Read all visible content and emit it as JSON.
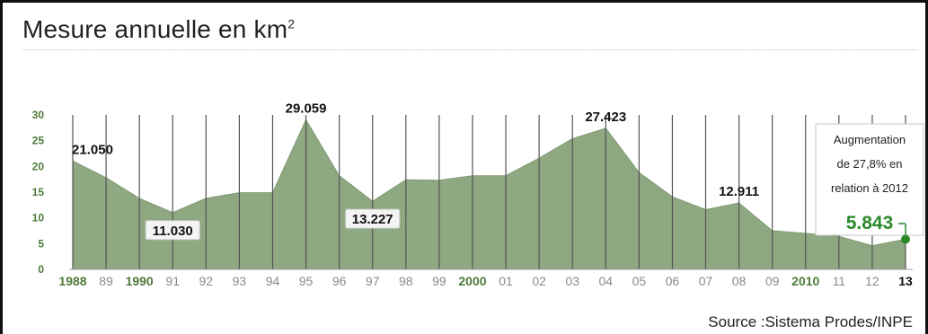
{
  "title": "Mesure annuelle en km",
  "title_sup": "2",
  "source": "Source :Sistema Prodes/INPE",
  "colors": {
    "area": "#8ea881",
    "grid": "#555555",
    "accent": "#2a8a2a",
    "axis_green": "#4d7a3a"
  },
  "chart_data": {
    "type": "area",
    "x": [
      "1988",
      "89",
      "1990",
      "91",
      "92",
      "93",
      "94",
      "95",
      "96",
      "97",
      "98",
      "99",
      "2000",
      "01",
      "02",
      "03",
      "04",
      "05",
      "06",
      "07",
      "08",
      "09",
      "2010",
      "11",
      "12",
      "13"
    ],
    "values": [
      21.05,
      17.8,
      13.8,
      11.03,
      13.8,
      14.9,
      14.9,
      29.059,
      18.2,
      13.227,
      17.4,
      17.3,
      18.2,
      18.2,
      21.6,
      25.4,
      27.423,
      18.8,
      14.1,
      11.6,
      12.911,
      7.5,
      7.0,
      6.4,
      4.6,
      5.843
    ],
    "ylim": [
      0,
      30
    ],
    "yticks": [
      "0",
      "5",
      "10",
      "15",
      "20",
      "25",
      "30"
    ],
    "data_labels": [
      {
        "index": 0,
        "text": "21.050",
        "style": "plain"
      },
      {
        "index": 3,
        "text": "11.030",
        "style": "box"
      },
      {
        "index": 7,
        "text": "29.059",
        "style": "plain"
      },
      {
        "index": 9,
        "text": "13.227",
        "style": "box"
      },
      {
        "index": 16,
        "text": "27.423",
        "style": "plain"
      },
      {
        "index": 20,
        "text": "12.911",
        "style": "plain"
      }
    ],
    "callout": {
      "line1": "Augmentation",
      "line2": "de 27,8% en",
      "line3": "relation à 2012",
      "value": "5.843"
    },
    "green_ticks": [
      "1988",
      "1990",
      "2000",
      "2010"
    ],
    "bold_ticks": [
      "13"
    ]
  }
}
